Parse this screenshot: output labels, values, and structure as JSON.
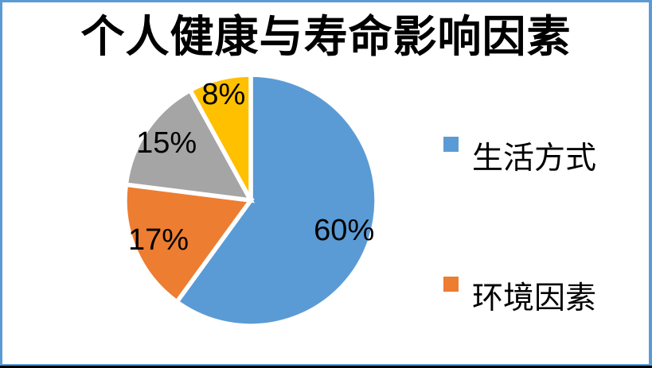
{
  "frame": {
    "border_color": "#5B9BD5",
    "bottom_edge_color": "#000000",
    "background": "#FFFFFF"
  },
  "chart_data": {
    "type": "pie",
    "title": "个人健康与寿命影响因素",
    "values": [
      60,
      17,
      15,
      8
    ],
    "labels": [
      "60%",
      "17%",
      "15%",
      "8%"
    ],
    "colors": [
      "#5B9BD5",
      "#ED7D31",
      "#A5A5A5",
      "#FFC000"
    ],
    "separator_color": "#FFFFFF",
    "start_angle_deg": 0,
    "direction": "clockwise",
    "label_color": "#000000",
    "legend": {
      "position": "right",
      "entries": [
        {
          "label": "生活方式",
          "color": "#5B9BD5"
        },
        {
          "label": "环境因素",
          "color": "#ED7D31"
        }
      ]
    }
  }
}
